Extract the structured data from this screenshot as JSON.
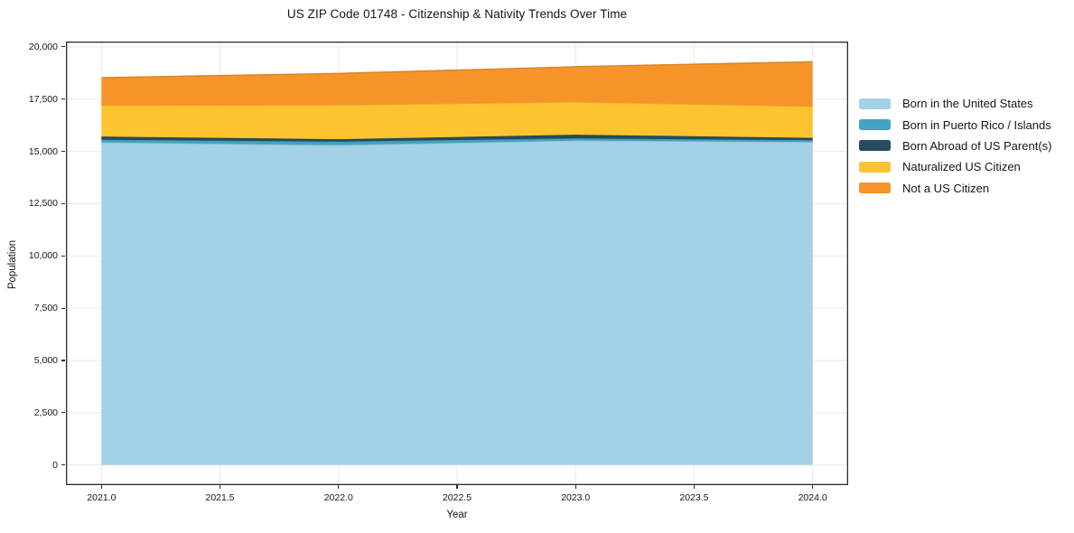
{
  "chart_data": {
    "type": "area",
    "stacked": true,
    "title": "US ZIP Code 01748 - Citizenship & Nativity Trends Over Time",
    "xlabel": "Year",
    "ylabel": "Population",
    "x": [
      2021,
      2022,
      2023,
      2024
    ],
    "series": [
      {
        "name": "Born in the United States",
        "color": "#a3d1e6",
        "values": [
          15430,
          15300,
          15520,
          15450
        ]
      },
      {
        "name": "Born in Puerto Rico / Islands",
        "color": "#41a4c4",
        "values": [
          130,
          170,
          105,
          90
        ]
      },
      {
        "name": "Born Abroad of US Parent(s)",
        "color": "#264a5e",
        "values": [
          150,
          110,
          175,
          105
        ]
      },
      {
        "name": "Naturalized US Citizen",
        "color": "#fdc42f",
        "values": [
          1490,
          1640,
          1570,
          1510
        ]
      },
      {
        "name": "Not a US Citizen",
        "color": "#f79429",
        "values": [
          1330,
          1510,
          1680,
          2135
        ]
      }
    ],
    "totals": [
      18530,
      18730,
      19050,
      19290
    ],
    "xlim": [
      2020.85,
      2024.15
    ],
    "ylim": [
      -965,
      20255
    ],
    "xticks": {
      "values": [
        2021.0,
        2021.5,
        2022.0,
        2022.5,
        2023.0,
        2023.5,
        2024.0
      ],
      "labels": [
        "2021.0",
        "2021.5",
        "2022.0",
        "2022.5",
        "2023.0",
        "2023.5",
        "2024.0"
      ]
    },
    "yticks": {
      "values": [
        0,
        2500,
        5000,
        7500,
        10000,
        12500,
        15000,
        17500,
        20000
      ],
      "labels": [
        "0",
        "2,500",
        "5,000",
        "7,500",
        "10,000",
        "12,500",
        "15,000",
        "17,500",
        "20,000"
      ]
    },
    "grid": true,
    "legend_position": "center-right-outside",
    "colors": {
      "background": "#ffffff",
      "grid": "#e9e9e9",
      "spine": "#2b2b2b",
      "text": "#151515"
    }
  }
}
